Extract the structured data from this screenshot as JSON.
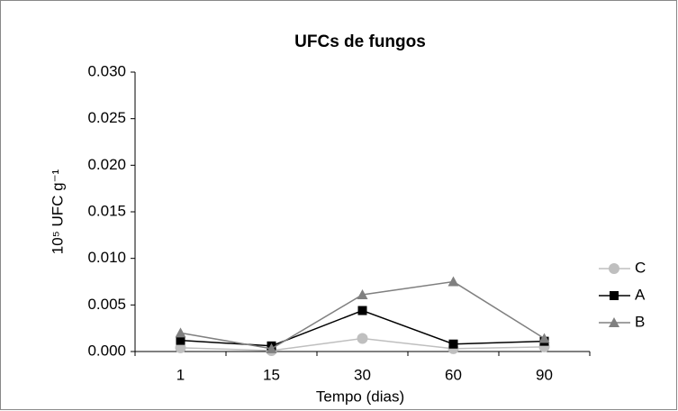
{
  "chart_data": {
    "type": "line",
    "title": "UFCs de fungos",
    "x_label": "Tempo (dias)",
    "y_label": "10⁵ UFC g⁻¹",
    "categories": [
      "1",
      "15",
      "30",
      "60",
      "90"
    ],
    "series": [
      {
        "name": "C",
        "color": "#bfbfbf",
        "marker": "circle",
        "values": [
          0.0004,
          0.0001,
          0.0014,
          0.0003,
          0.0005
        ]
      },
      {
        "name": "A",
        "color": "#000000",
        "marker": "square",
        "values": [
          0.0012,
          0.0006,
          0.0044,
          0.0008,
          0.0011
        ]
      },
      {
        "name": "B",
        "color": "#808080",
        "marker": "triangle",
        "values": [
          0.002,
          0.0003,
          0.0061,
          0.0075,
          0.0014
        ]
      }
    ],
    "ylim": [
      0,
      0.03
    ],
    "yticks": [
      {
        "value": 0,
        "label": "0.000"
      },
      {
        "value": 0.005,
        "label": "0.005"
      },
      {
        "value": 0.01,
        "label": "0.010"
      },
      {
        "value": 0.015,
        "label": "0.015"
      },
      {
        "value": 0.02,
        "label": "0.020"
      },
      {
        "value": 0.025,
        "label": "0.025"
      },
      {
        "value": 0.03,
        "label": "0.030"
      }
    ],
    "grid": false,
    "legend": "right"
  }
}
